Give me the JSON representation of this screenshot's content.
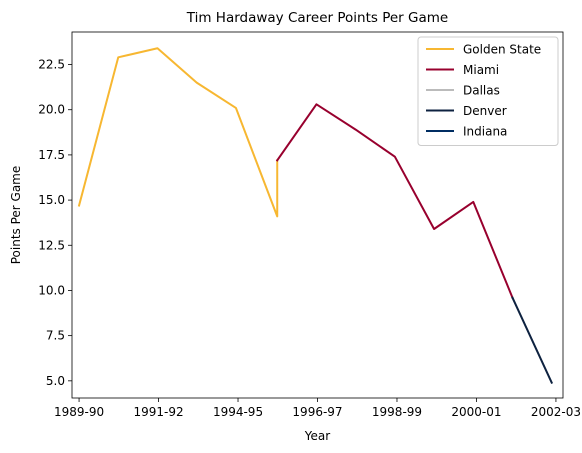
{
  "chart_data": {
    "type": "line",
    "title": "Tim Hardaway Career Points Per Game",
    "xlabel": "Year",
    "ylabel": "Points Per Game",
    "ylim": [
      4.05,
      24.3
    ],
    "xlim": [
      1989.55,
      2003.45
    ],
    "xticks": [
      {
        "x": 1989.75,
        "label": "1989-90"
      },
      {
        "x": 1992.0,
        "label": "1991-92"
      },
      {
        "x": 1994.25,
        "label": "1994-95"
      },
      {
        "x": 1996.5,
        "label": "1996-97"
      },
      {
        "x": 1998.75,
        "label": "1998-99"
      },
      {
        "x": 2001.0,
        "label": "2000-01"
      },
      {
        "x": 2003.25,
        "label": "2002-03"
      }
    ],
    "yticks": [
      5.0,
      7.5,
      10.0,
      12.5,
      15.0,
      17.5,
      20.0,
      22.5
    ],
    "ytick_labels": [
      "5.0",
      "7.5",
      "10.0",
      "12.5",
      "15.0",
      "17.5",
      "20.0",
      "22.5"
    ],
    "series": [
      {
        "name": "Golden State",
        "color": "#F7B731",
        "points": [
          {
            "x": 1989.75,
            "y": 14.7
          },
          {
            "x": 1990.86,
            "y": 22.9
          },
          {
            "x": 1991.97,
            "y": 23.4
          },
          {
            "x": 1993.08,
            "y": 21.5
          },
          {
            "x": 1994.19,
            "y": 20.1
          },
          {
            "x": 1995.36,
            "y": 14.1
          },
          {
            "x": 1995.36,
            "y": 17.2
          }
        ]
      },
      {
        "name": "Miami",
        "color": "#98002E",
        "points": [
          {
            "x": 1995.36,
            "y": 17.2
          },
          {
            "x": 1996.47,
            "y": 20.3
          },
          {
            "x": 1997.58,
            "y": 18.9
          },
          {
            "x": 1998.69,
            "y": 17.4
          },
          {
            "x": 1999.8,
            "y": 13.4
          },
          {
            "x": 2000.91,
            "y": 14.9
          },
          {
            "x": 2002.02,
            "y": 9.6
          }
        ]
      },
      {
        "name": "Dallas",
        "color": "#BBBBBB",
        "points": []
      },
      {
        "name": "Denver",
        "color": "#0E2240",
        "points": [
          {
            "x": 2002.02,
            "y": 9.6
          },
          {
            "x": 2003.13,
            "y": 4.9
          }
        ]
      },
      {
        "name": "Indiana",
        "color": "#002D62",
        "points": []
      }
    ],
    "legend_position": "top-right",
    "grid": false
  }
}
